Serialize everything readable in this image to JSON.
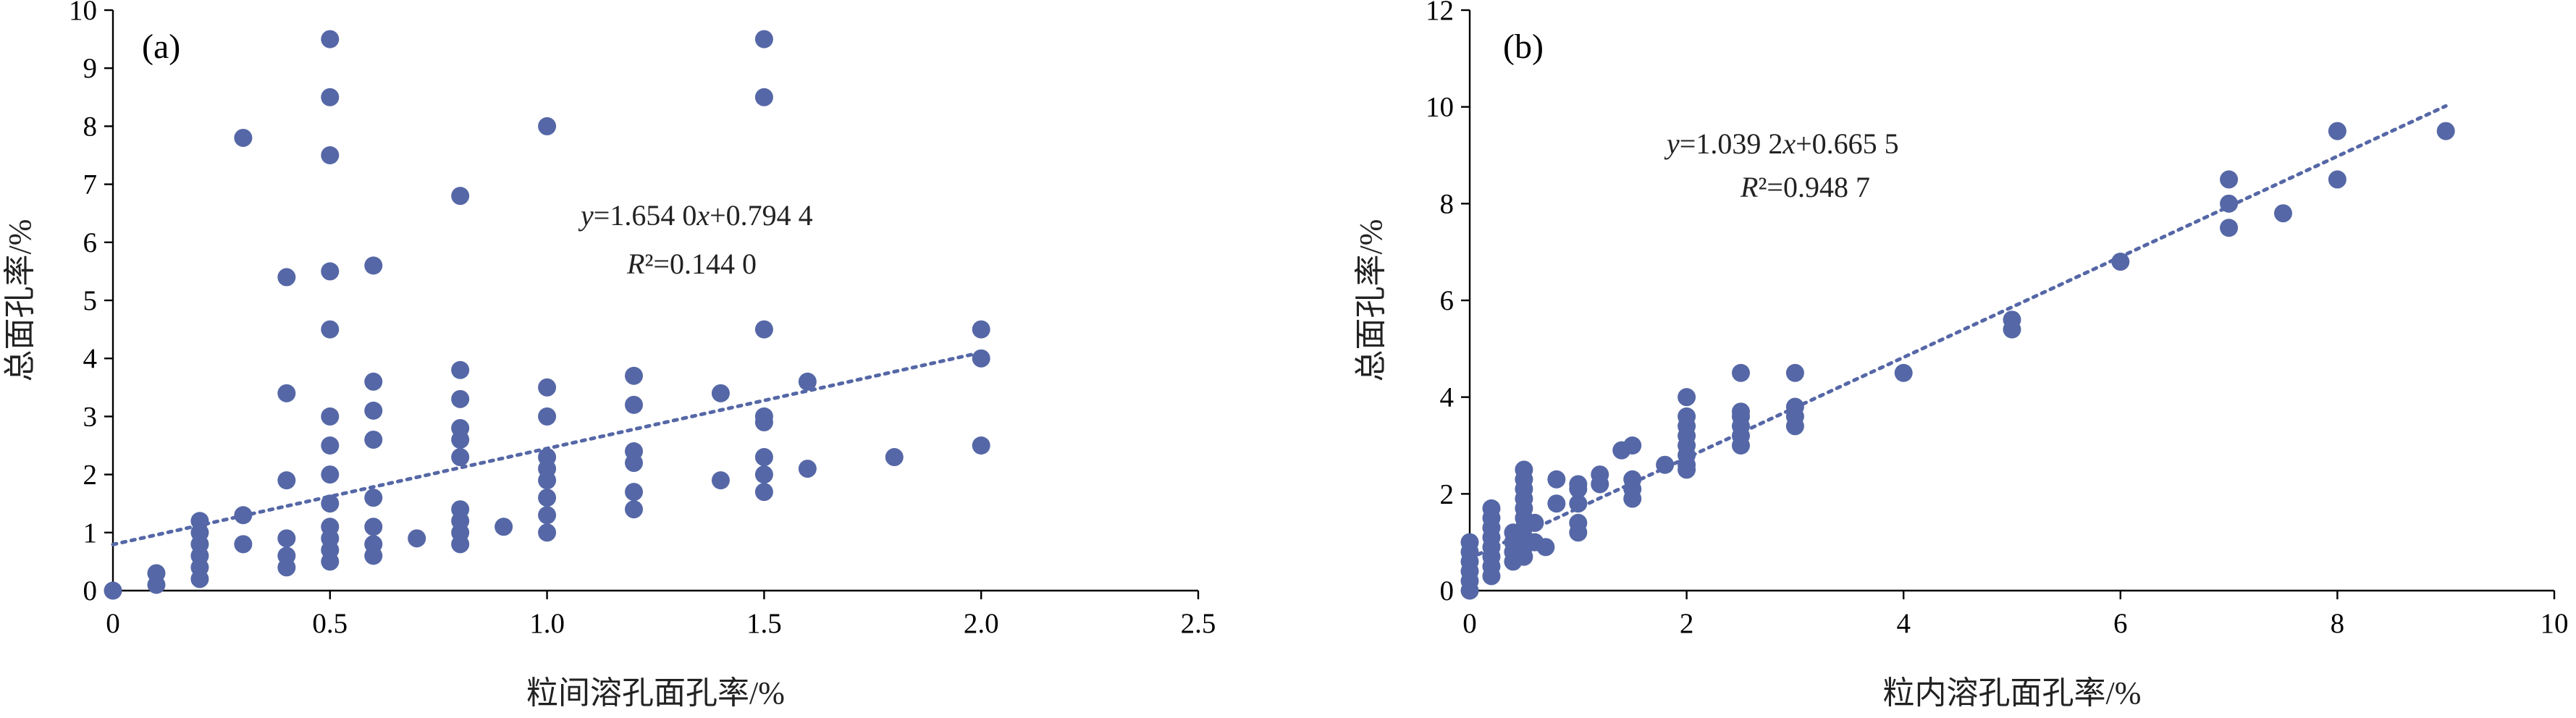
{
  "chart_data": [
    {
      "type": "scatter",
      "panel_label": "(a)",
      "xlabel": "粒间溶孔面孔率/%",
      "ylabel": "总面孔率/%",
      "xlim": [
        0,
        2.5
      ],
      "ylim": [
        0,
        10
      ],
      "xticks": [
        0,
        0.5,
        1.0,
        1.5,
        2.0,
        2.5
      ],
      "xtick_labels": [
        "0",
        "0.5",
        "1.0",
        "1.5",
        "2.0",
        "2.5"
      ],
      "yticks": [
        0,
        1,
        2,
        3,
        4,
        5,
        6,
        7,
        8,
        9,
        10
      ],
      "ytick_labels": [
        "0",
        "1",
        "2",
        "3",
        "4",
        "5",
        "6",
        "7",
        "8",
        "9",
        "10"
      ],
      "color": "#5567A6",
      "equation": "y=1.654 0x+0.794 4",
      "r2": "R²=0.144 0",
      "trendline": {
        "slope": 1.654,
        "intercept": 0.7944,
        "x_range": [
          0,
          2.0
        ]
      },
      "points": [
        [
          0,
          0
        ],
        [
          0.1,
          0.1
        ],
        [
          0.1,
          0.3
        ],
        [
          0.2,
          0.2
        ],
        [
          0.2,
          0.4
        ],
        [
          0.2,
          0.6
        ],
        [
          0.2,
          0.8
        ],
        [
          0.2,
          1.0
        ],
        [
          0.2,
          1.2
        ],
        [
          0.3,
          0.8
        ],
        [
          0.3,
          1.3
        ],
        [
          0.3,
          7.8
        ],
        [
          0.4,
          0.4
        ],
        [
          0.4,
          0.6
        ],
        [
          0.4,
          0.9
        ],
        [
          0.4,
          1.9
        ],
        [
          0.4,
          3.4
        ],
        [
          0.4,
          5.4
        ],
        [
          0.5,
          0.5
        ],
        [
          0.5,
          0.7
        ],
        [
          0.5,
          0.9
        ],
        [
          0.5,
          1.1
        ],
        [
          0.5,
          1.5
        ],
        [
          0.5,
          2.0
        ],
        [
          0.5,
          2.5
        ],
        [
          0.5,
          3.0
        ],
        [
          0.5,
          4.5
        ],
        [
          0.5,
          5.5
        ],
        [
          0.5,
          7.5
        ],
        [
          0.5,
          8.5
        ],
        [
          0.5,
          9.5
        ],
        [
          0.6,
          0.6
        ],
        [
          0.6,
          0.8
        ],
        [
          0.6,
          1.1
        ],
        [
          0.6,
          1.6
        ],
        [
          0.6,
          2.6
        ],
        [
          0.6,
          3.1
        ],
        [
          0.6,
          3.6
        ],
        [
          0.6,
          5.6
        ],
        [
          0.7,
          0.9
        ],
        [
          0.8,
          0.8
        ],
        [
          0.8,
          1.0
        ],
        [
          0.8,
          1.2
        ],
        [
          0.8,
          1.4
        ],
        [
          0.8,
          2.3
        ],
        [
          0.8,
          2.6
        ],
        [
          0.8,
          2.8
        ],
        [
          0.8,
          3.3
        ],
        [
          0.8,
          3.8
        ],
        [
          0.8,
          6.8
        ],
        [
          0.9,
          1.1
        ],
        [
          1.0,
          1.0
        ],
        [
          1.0,
          1.3
        ],
        [
          1.0,
          1.6
        ],
        [
          1.0,
          1.9
        ],
        [
          1.0,
          2.1
        ],
        [
          1.0,
          2.3
        ],
        [
          1.0,
          3.0
        ],
        [
          1.0,
          3.5
        ],
        [
          1.0,
          8.0
        ],
        [
          1.2,
          1.4
        ],
        [
          1.2,
          1.7
        ],
        [
          1.2,
          2.2
        ],
        [
          1.2,
          2.4
        ],
        [
          1.2,
          3.2
        ],
        [
          1.2,
          3.7
        ],
        [
          1.4,
          1.9
        ],
        [
          1.4,
          3.4
        ],
        [
          1.5,
          1.7
        ],
        [
          1.5,
          2.0
        ],
        [
          1.5,
          2.3
        ],
        [
          1.5,
          2.9
        ],
        [
          1.5,
          3.0
        ],
        [
          1.5,
          4.5
        ],
        [
          1.5,
          8.5
        ],
        [
          1.5,
          9.5
        ],
        [
          1.6,
          2.1
        ],
        [
          1.6,
          3.6
        ],
        [
          1.8,
          2.3
        ],
        [
          2.0,
          2.5
        ],
        [
          2.0,
          4.0
        ],
        [
          2.0,
          4.5
        ]
      ]
    },
    {
      "type": "scatter",
      "panel_label": "(b)",
      "xlabel": "粒内溶孔面孔率/%",
      "ylabel": "总面孔率/%",
      "xlim": [
        0,
        10
      ],
      "ylim": [
        0,
        12
      ],
      "xticks": [
        0,
        2,
        4,
        6,
        8,
        10
      ],
      "xtick_labels": [
        "0",
        "2",
        "4",
        "6",
        "8",
        "10"
      ],
      "yticks": [
        0,
        2,
        4,
        6,
        8,
        10,
        12
      ],
      "ytick_labels": [
        "0",
        "2",
        "4",
        "6",
        "8",
        "10",
        "12"
      ],
      "color": "#5567A6",
      "equation": "y=1.039 2x+0.665 5",
      "r2": "R²=0.948 7",
      "trendline": {
        "slope": 1.0392,
        "intercept": 0.6655,
        "x_range": [
          0,
          9.0
        ]
      },
      "points": [
        [
          0,
          0
        ],
        [
          0,
          0.2
        ],
        [
          0,
          0.4
        ],
        [
          0,
          0.6
        ],
        [
          0,
          0.8
        ],
        [
          0,
          1.0
        ],
        [
          0.2,
          0.3
        ],
        [
          0.2,
          0.5
        ],
        [
          0.2,
          0.7
        ],
        [
          0.2,
          0.9
        ],
        [
          0.2,
          1.1
        ],
        [
          0.2,
          1.3
        ],
        [
          0.2,
          1.5
        ],
        [
          0.2,
          1.7
        ],
        [
          0.4,
          0.6
        ],
        [
          0.4,
          0.8
        ],
        [
          0.4,
          1.0
        ],
        [
          0.4,
          1.2
        ],
        [
          0.5,
          0.7
        ],
        [
          0.5,
          0.9
        ],
        [
          0.5,
          1.1
        ],
        [
          0.5,
          1.3
        ],
        [
          0.5,
          1.5
        ],
        [
          0.5,
          1.7
        ],
        [
          0.5,
          1.9
        ],
        [
          0.5,
          2.1
        ],
        [
          0.5,
          2.3
        ],
        [
          0.5,
          2.5
        ],
        [
          0.6,
          1.0
        ],
        [
          0.6,
          1.4
        ],
        [
          0.7,
          0.9
        ],
        [
          0.8,
          1.8
        ],
        [
          0.8,
          2.3
        ],
        [
          1.0,
          1.2
        ],
        [
          1.0,
          1.4
        ],
        [
          1.0,
          1.8
        ],
        [
          1.0,
          2.1
        ],
        [
          1.0,
          2.2
        ],
        [
          1.2,
          2.2
        ],
        [
          1.2,
          2.4
        ],
        [
          1.4,
          2.9
        ],
        [
          1.5,
          1.9
        ],
        [
          1.5,
          2.1
        ],
        [
          1.5,
          2.3
        ],
        [
          1.5,
          3.0
        ],
        [
          1.8,
          2.6
        ],
        [
          2.0,
          2.5
        ],
        [
          2.0,
          2.6
        ],
        [
          2.0,
          2.8
        ],
        [
          2.0,
          3.0
        ],
        [
          2.0,
          3.2
        ],
        [
          2.0,
          3.4
        ],
        [
          2.0,
          3.6
        ],
        [
          2.0,
          4.0
        ],
        [
          2.5,
          3.0
        ],
        [
          2.5,
          3.2
        ],
        [
          2.5,
          3.4
        ],
        [
          2.5,
          3.6
        ],
        [
          2.5,
          3.7
        ],
        [
          2.5,
          4.5
        ],
        [
          3.0,
          3.4
        ],
        [
          3.0,
          3.6
        ],
        [
          3.0,
          3.8
        ],
        [
          3.0,
          4.5
        ],
        [
          4.0,
          4.5
        ],
        [
          5.0,
          5.4
        ],
        [
          5.0,
          5.6
        ],
        [
          6.0,
          6.8
        ],
        [
          7.0,
          7.5
        ],
        [
          7.0,
          8.0
        ],
        [
          7.0,
          8.5
        ],
        [
          7.5,
          7.8
        ],
        [
          8.0,
          8.5
        ],
        [
          8.0,
          9.5
        ],
        [
          9.0,
          9.5
        ]
      ]
    }
  ]
}
